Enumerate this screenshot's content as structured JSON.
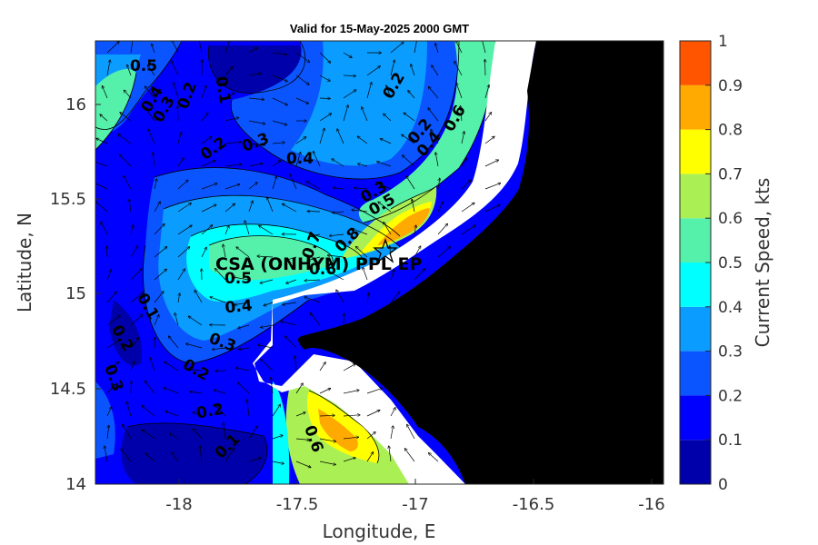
{
  "title": "Valid for 15-May-2025 2000 GMT",
  "xlabel": "Longitude, E",
  "ylabel": "Latitude, N",
  "colorbar_label": "Current Speed, kts",
  "xticks": [
    "-18",
    "-17.5",
    "-17",
    "-16.5",
    "-16"
  ],
  "yticks": [
    "16",
    "15.5",
    "15",
    "14.5",
    "14"
  ],
  "colorbar": {
    "ticks": [
      "1",
      "0.9",
      "0.8",
      "0.7",
      "0.6",
      "0.5",
      "0.4",
      "0.3",
      "0.2",
      "0.1",
      "0"
    ],
    "colors": [
      "#0000aa",
      "#0000ff",
      "#0a55ff",
      "#0a9cff",
      "#00ffff",
      "#55f0aa",
      "#aaf055",
      "#ffff00",
      "#ffaa00",
      "#ff5500"
    ]
  },
  "station": {
    "label": "CSA (ONHYM) PPL EP",
    "icon": "star-icon"
  },
  "contour_labels": [
    "0.5",
    "0.4",
    "0.3",
    "0.2",
    "0.1",
    "0.2",
    "0.3",
    "0.4",
    "0.2",
    "0.2",
    "0.4",
    "0.6",
    "0.3",
    "0.5",
    "0.7",
    "0.8",
    "0.5",
    "0.6",
    "0.4",
    "0.3",
    "0.1",
    "0.2",
    "0.3",
    "0.2",
    "0.2",
    "0.1",
    "0.6"
  ],
  "land_color": "#000000",
  "mask_color": "#ffffff"
}
